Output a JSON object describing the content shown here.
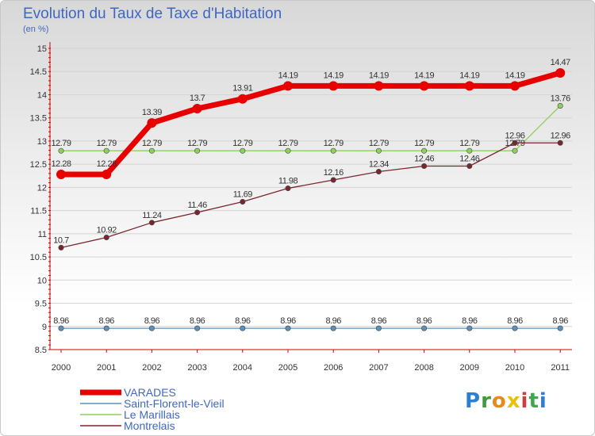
{
  "header": {
    "title": "Evolution du Taux de Taxe d'Habitation",
    "subtitle": "(en %)"
  },
  "logo": {
    "text": "Proxiti"
  },
  "colors": {
    "axis": "#d00000",
    "grid": "#d4d4d4",
    "text": "#3f67c2"
  },
  "chart_data": {
    "type": "line",
    "title": "Evolution du Taux de Taxe d'Habitation",
    "subtitle": "(en %)",
    "xlabel": "",
    "ylabel": "",
    "ylim": [
      8.5,
      15
    ],
    "yticks": [
      "8.5",
      "9",
      "9.5",
      "10",
      "10.5",
      "11",
      "11.5",
      "12",
      "12.5",
      "13",
      "13.5",
      "14",
      "14.5",
      "15"
    ],
    "categories": [
      "2000",
      "2001",
      "2002",
      "2003",
      "2004",
      "2005",
      "2006",
      "2007",
      "2008",
      "2009",
      "2010",
      "2011"
    ],
    "grid": true,
    "legend_position": "bottom-left",
    "series": [
      {
        "name": "VARADES",
        "color": "#e80000",
        "values": [
          12.28,
          12.28,
          13.39,
          13.7,
          13.91,
          14.19,
          14.19,
          14.19,
          14.19,
          14.19,
          14.19,
          14.47
        ],
        "labels": [
          "12.28",
          "12.28",
          "13.39",
          "13.7",
          "13.91",
          "14.19",
          "14.19",
          "14.19",
          "14.19",
          "14.19",
          "14.19",
          "14.47"
        ]
      },
      {
        "name": "Saint-Florent-le-Vieil",
        "color": "#5e90bb",
        "values": [
          8.96,
          8.96,
          8.96,
          8.96,
          8.96,
          8.96,
          8.96,
          8.96,
          8.96,
          8.96,
          8.96,
          8.96
        ],
        "labels": [
          "8.96",
          "8.96",
          "8.96",
          "8.96",
          "8.96",
          "8.96",
          "8.96",
          "8.96",
          "8.96",
          "8.96",
          "8.96",
          "8.96"
        ]
      },
      {
        "name": "Le Marillais",
        "color": "#8bd15c",
        "values": [
          12.79,
          12.79,
          12.79,
          12.79,
          12.79,
          12.79,
          12.79,
          12.79,
          12.79,
          12.79,
          12.79,
          13.76
        ],
        "labels": [
          "12.79",
          "12.79",
          "12.79",
          "12.79",
          "12.79",
          "12.79",
          "12.79",
          "12.79",
          "12.79",
          "12.79",
          "12.79",
          "13.76"
        ]
      },
      {
        "name": "Montrelais",
        "color": "#7a2630",
        "values": [
          10.7,
          10.92,
          11.24,
          11.46,
          11.69,
          11.98,
          12.16,
          12.34,
          12.46,
          12.46,
          12.96,
          12.96
        ],
        "labels": [
          "10.7",
          "10.92",
          "11.24",
          "11.46",
          "11.69",
          "11.98",
          "12.16",
          "12.34",
          "12.46",
          "12.46",
          "12.96",
          "12.96"
        ]
      }
    ]
  }
}
